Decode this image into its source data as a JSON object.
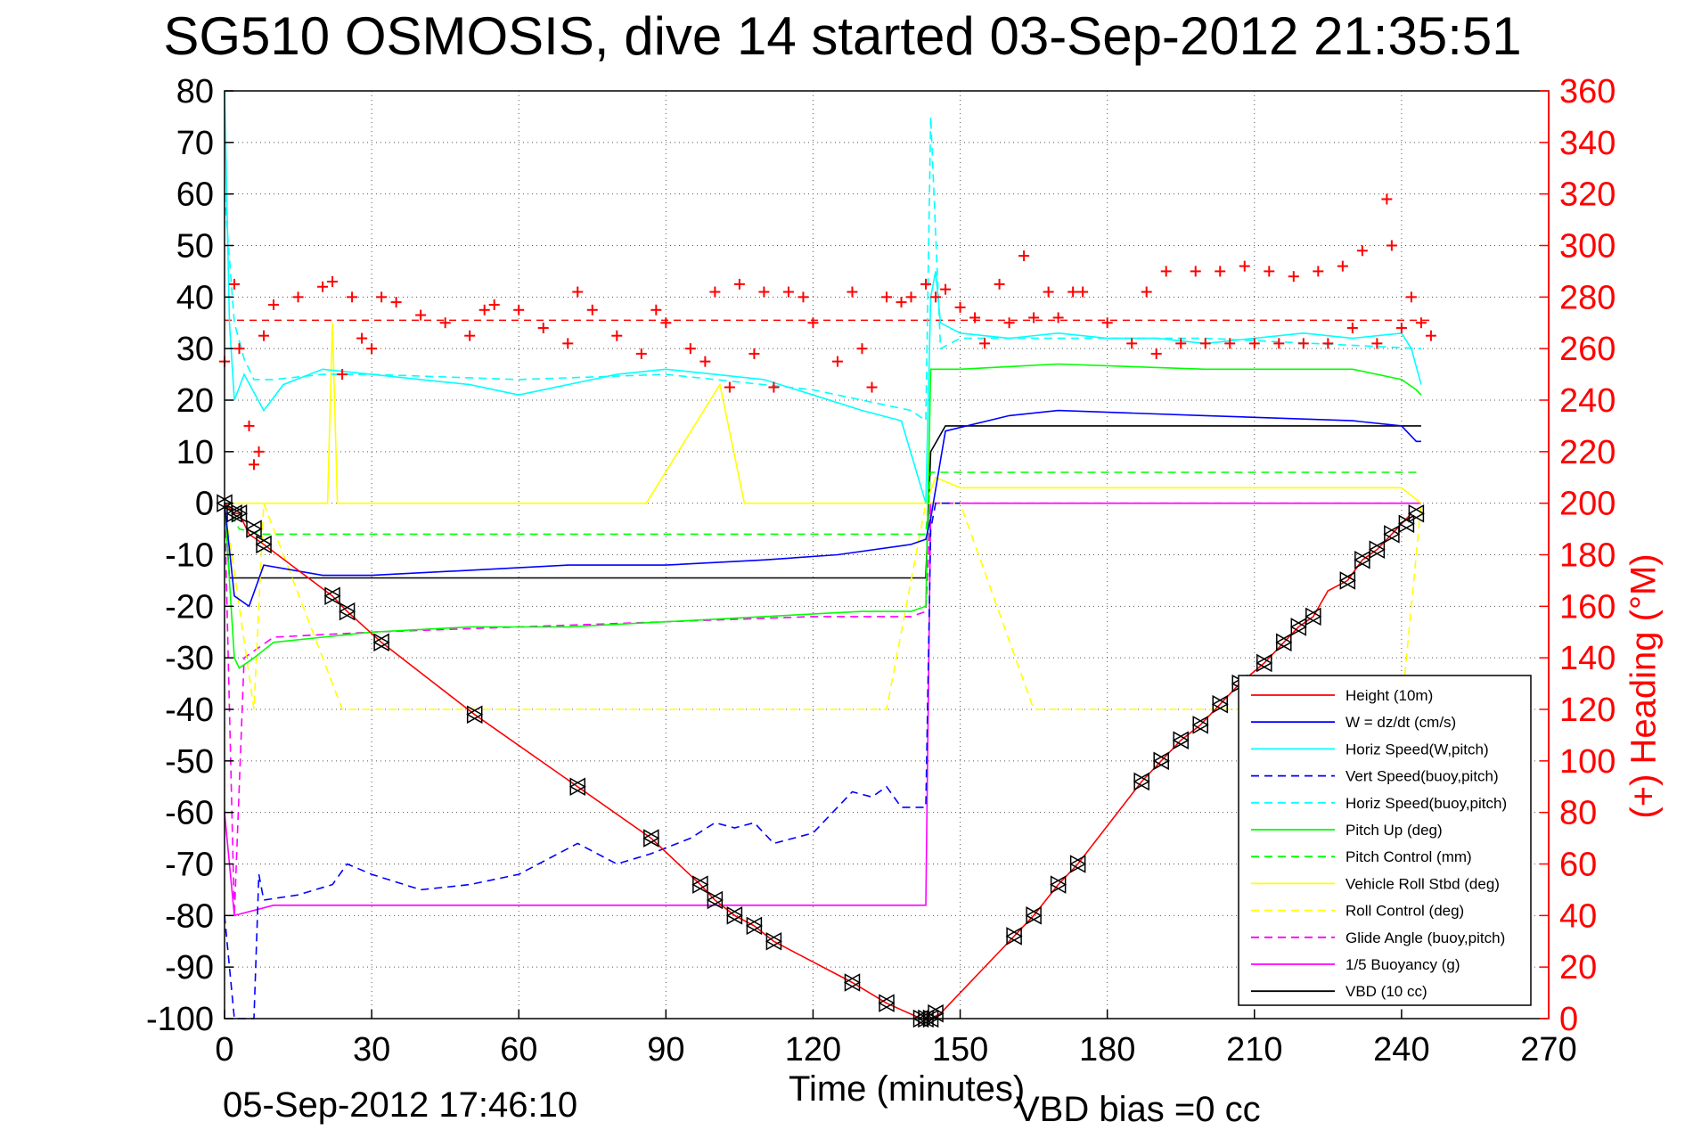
{
  "chart_data": {
    "type": "line",
    "title": "SG510 OSMOSIS, dive 14 started 03-Sep-2012 21:35:51",
    "xlabel": "Time (minutes)",
    "ylabel": "",
    "y2label": "(+) Heading (°M)",
    "footer_timestamp": "05-Sep-2012 17:46:10",
    "footer_note": "VBD bias =0 cc",
    "xlim": [
      0,
      270
    ],
    "ylim": [
      -100,
      80
    ],
    "y2lim": [
      0,
      360
    ],
    "xticks": [
      0,
      30,
      60,
      90,
      120,
      150,
      180,
      210,
      240,
      270
    ],
    "yticks": [
      80,
      70,
      60,
      50,
      40,
      30,
      20,
      10,
      0,
      -10,
      -20,
      -30,
      -40,
      -50,
      -60,
      -70,
      -80,
      -90,
      -100
    ],
    "y2ticks": [
      360,
      340,
      320,
      300,
      280,
      260,
      240,
      220,
      200,
      180,
      160,
      140,
      120,
      100,
      80,
      60,
      40,
      20,
      0
    ],
    "grid": true,
    "legend_position": "lower-right",
    "colors": {
      "red": "#ff0000",
      "blue": "#0000ff",
      "cyan": "#00ffff",
      "green": "#00ff00",
      "yellow": "#ffff00",
      "magenta": "#ff00ff",
      "black": "#000000"
    },
    "series": [
      {
        "name": "Height (10m)",
        "color": "#ff0000",
        "dash": "solid",
        "x": [
          0,
          2,
          3,
          5,
          8,
          22,
          25,
          32,
          51,
          72,
          87,
          97,
          100,
          104,
          108,
          112,
          128,
          135,
          142,
          144,
          146,
          161,
          165,
          170,
          174,
          187,
          191,
          195,
          199,
          203,
          207,
          212,
          216,
          219,
          222,
          225,
          229,
          232,
          235,
          238,
          240,
          242
        ],
        "y": [
          0,
          -2,
          -2,
          -6,
          -8,
          -18,
          -21,
          -27,
          -41,
          -55,
          -65,
          -74,
          -77,
          -80,
          -82,
          -85,
          -93,
          -97,
          -100,
          -100,
          -99,
          -84,
          -80,
          -74,
          -70,
          -54,
          -50,
          -46,
          -43,
          -39,
          -35,
          -31,
          -27,
          -24,
          -22,
          -17,
          -15,
          -11,
          -9,
          -6,
          -4,
          -2
        ]
      },
      {
        "name": "W = dz/dt (cm/s)",
        "color": "#0000ff",
        "dash": "solid",
        "x": [
          0,
          2,
          5,
          8,
          20,
          30,
          50,
          70,
          90,
          110,
          125,
          140,
          143,
          144,
          147,
          160,
          170,
          200,
          230,
          240,
          243,
          244
        ],
        "y": [
          0,
          -18,
          -20,
          -12,
          -14,
          -14,
          -13,
          -12,
          -12,
          -11,
          -10,
          -8,
          -7,
          -3,
          14,
          17,
          18,
          17,
          16,
          15,
          12,
          12
        ]
      },
      {
        "name": "Horiz Speed(W,pitch)",
        "color": "#00ffff",
        "dash": "solid",
        "x": [
          0,
          1,
          2,
          4,
          8,
          12,
          20,
          30,
          40,
          50,
          60,
          70,
          80,
          90,
          100,
          110,
          120,
          130,
          138,
          143,
          144,
          145,
          146,
          150,
          160,
          170,
          180,
          190,
          200,
          210,
          220,
          230,
          240,
          242,
          244
        ],
        "y": [
          80,
          35,
          20,
          25,
          18,
          23,
          26,
          25,
          24,
          23,
          21,
          23,
          25,
          26,
          25,
          24,
          21,
          18,
          16,
          0,
          40,
          45,
          35,
          33,
          32,
          33,
          32,
          32,
          31,
          32,
          33,
          32,
          33,
          30,
          23
        ]
      },
      {
        "name": "Vert Speed(buoy,pitch)",
        "color": "#0000ff",
        "dash": "dashed",
        "x": [
          0,
          2,
          4,
          6,
          7,
          8,
          15,
          22,
          25,
          30,
          40,
          50,
          60,
          72,
          80,
          87,
          95,
          100,
          104,
          108,
          112,
          120,
          128,
          132,
          135,
          138,
          143,
          144,
          145,
          147,
          150
        ],
        "y": [
          -80,
          -100,
          -100,
          -100,
          -72,
          -77,
          -76,
          -74,
          -70,
          -72,
          -75,
          -74,
          -72,
          -66,
          -70,
          -68,
          -65,
          -62,
          -63,
          -62,
          -66,
          -64,
          -56,
          -57,
          -55,
          -59,
          -59,
          -5,
          0,
          0,
          0
        ]
      },
      {
        "name": "Horiz Speed(buoy,pitch)",
        "color": "#00ffff",
        "dash": "dashed",
        "x": [
          0,
          2,
          4,
          6,
          10,
          20,
          30,
          60,
          90,
          120,
          140,
          143,
          144,
          146,
          150,
          200,
          244
        ],
        "y": [
          60,
          35,
          28,
          24,
          24,
          25,
          25,
          24,
          25,
          22,
          18,
          16,
          75,
          30,
          32,
          32,
          30
        ]
      },
      {
        "name": "Pitch Up (deg)",
        "color": "#00ff00",
        "dash": "solid",
        "x": [
          0,
          2,
          3,
          6,
          10,
          20,
          30,
          50,
          70,
          90,
          110,
          130,
          140,
          143,
          144,
          147,
          150,
          170,
          200,
          230,
          240,
          243,
          244
        ],
        "y": [
          0,
          -30,
          -32,
          -30,
          -27,
          -26,
          -25,
          -24,
          -24,
          -23,
          -22,
          -21,
          -21,
          -20,
          26,
          26,
          26,
          27,
          26,
          26,
          24,
          22,
          21
        ]
      },
      {
        "name": "Pitch Control (mm)",
        "color": "#00ff00",
        "dash": "dashed",
        "x": [
          0,
          3,
          8,
          30,
          60,
          90,
          120,
          143,
          144,
          150,
          180,
          210,
          240,
          244
        ],
        "y": [
          0,
          -5,
          -6,
          -6,
          -6,
          -6,
          -6,
          -6,
          6,
          6,
          6,
          6,
          6,
          6
        ]
      },
      {
        "name": "Vehicle Roll Stbd (deg)",
        "color": "#ffff00",
        "dash": "solid",
        "x": [
          0,
          5,
          10,
          21,
          22,
          23,
          40,
          72,
          86,
          101,
          106,
          110,
          130,
          143,
          145,
          150,
          170,
          200,
          230,
          240,
          244
        ],
        "y": [
          0,
          0,
          0,
          0,
          35,
          0,
          0,
          0,
          0,
          23,
          0,
          0,
          0,
          0,
          5,
          3,
          3,
          3,
          3,
          3,
          0
        ]
      },
      {
        "name": "Roll Control (deg)",
        "color": "#ffff00",
        "dash": "dashed",
        "x": [
          0,
          6,
          8,
          24,
          32,
          51,
          72,
          87,
          97,
          104,
          108,
          112,
          135,
          143,
          150,
          165,
          180,
          210,
          240,
          244
        ],
        "y": [
          0,
          -40,
          0,
          -40,
          -40,
          -40,
          -40,
          -40,
          -40,
          -40,
          -40,
          -40,
          -40,
          0,
          0,
          -40,
          -40,
          -40,
          -40,
          0
        ]
      },
      {
        "name": "Glide Angle (buoy,pitch)",
        "color": "#ff00ff",
        "dash": "dashed",
        "x": [
          0,
          2,
          4,
          10,
          30,
          60,
          90,
          120,
          140,
          143,
          144,
          150,
          200,
          244
        ],
        "y": [
          0,
          -80,
          -30,
          -26,
          -25,
          -24,
          -23,
          -22,
          -22,
          -21,
          0,
          0,
          0,
          0
        ]
      },
      {
        "name": "1/5 Buoyancy (g)",
        "color": "#ff00ff",
        "dash": "solid",
        "x": [
          0,
          2,
          10,
          60,
          143,
          144,
          244
        ],
        "y": [
          -60,
          -80,
          -78,
          -78,
          -78,
          0,
          0
        ]
      },
      {
        "name": "VBD (10 cc)",
        "color": "#000000",
        "dash": "solid",
        "x": [
          0,
          1,
          2,
          143,
          144,
          147,
          244
        ],
        "y": [
          0,
          -14.5,
          -14.5,
          -14.5,
          10,
          15,
          15
        ]
      }
    ],
    "heading_series": {
      "name": "(+) Heading (°M)",
      "color": "#ff0000",
      "marker": "+",
      "axis": "right",
      "x": [
        0,
        2,
        3,
        5,
        6,
        7,
        8,
        10,
        15,
        20,
        22,
        24,
        26,
        28,
        30,
        32,
        35,
        40,
        45,
        50,
        53,
        55,
        60,
        65,
        70,
        72,
        75,
        80,
        85,
        88,
        90,
        95,
        98,
        100,
        103,
        105,
        108,
        110,
        112,
        115,
        118,
        120,
        125,
        128,
        130,
        132,
        135,
        138,
        140,
        143,
        145,
        147,
        150,
        153,
        155,
        158,
        160,
        163,
        165,
        168,
        170,
        173,
        175,
        180,
        185,
        188,
        190,
        192,
        195,
        198,
        200,
        203,
        205,
        208,
        210,
        213,
        215,
        218,
        220,
        223,
        225,
        228,
        230,
        232,
        235,
        237,
        238,
        240,
        242,
        244,
        246
      ],
      "y": [
        255,
        285,
        260,
        230,
        215,
        220,
        265,
        277,
        280,
        284,
        286,
        250,
        280,
        264,
        260,
        280,
        278,
        273,
        270,
        265,
        275,
        277,
        275,
        268,
        262,
        282,
        275,
        265,
        258,
        275,
        270,
        260,
        255,
        282,
        245,
        285,
        258,
        282,
        245,
        282,
        280,
        270,
        255,
        282,
        260,
        245,
        280,
        278,
        280,
        285,
        280,
        283,
        276,
        272,
        262,
        285,
        270,
        296,
        272,
        282,
        272,
        282,
        282,
        270,
        262,
        282,
        258,
        290,
        262,
        290,
        262,
        290,
        262,
        292,
        262,
        290,
        262,
        288,
        262,
        290,
        262,
        292,
        268,
        298,
        262,
        318,
        300,
        268,
        280,
        270,
        265
      ]
    },
    "heading_reference": {
      "x": [
        0,
        246
      ],
      "y": [
        271,
        271
      ],
      "color": "#ff0000",
      "dash": "dashed",
      "axis": "right"
    },
    "height_markers": {
      "x": [
        0,
        2,
        3,
        6,
        8,
        22,
        25,
        32,
        51,
        72,
        87,
        97,
        100,
        104,
        108,
        112,
        128,
        135,
        142,
        143,
        144,
        145,
        161,
        165,
        170,
        174,
        187,
        191,
        195,
        199,
        203,
        207,
        212,
        216,
        219,
        222,
        229,
        232,
        235,
        238,
        241,
        243
      ],
      "y": [
        0,
        -2,
        -2,
        -5,
        -8,
        -18,
        -21,
        -27,
        -41,
        -55,
        -65,
        -74,
        -77,
        -80,
        -82,
        -85,
        -93,
        -97,
        -100,
        -100,
        -100,
        -99,
        -84,
        -80,
        -74,
        -70,
        -54,
        -50,
        -46,
        -43,
        -39,
        -35,
        -31,
        -27,
        -24,
        -22,
        -15,
        -11,
        -9,
        -6,
        -4,
        -2
      ]
    }
  }
}
